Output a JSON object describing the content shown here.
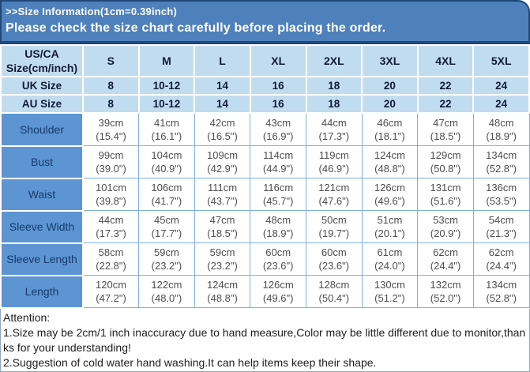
{
  "banner": {
    "line1": ">>Size Information(1cm=0.39inch)",
    "line2": "Please check the size chart carefully before placing the order."
  },
  "table": {
    "header": {
      "label_line1": "US/CA",
      "label_line2": "Size(cm/inch)",
      "sizes": [
        "S",
        "M",
        "L",
        "XL",
        "2XL",
        "3XL",
        "4XL",
        "5XL"
      ]
    },
    "uk": {
      "label": "UK Size",
      "values": [
        "8",
        "10-12",
        "14",
        "16",
        "18",
        "20",
        "22",
        "24"
      ]
    },
    "au": {
      "label": "AU Size",
      "values": [
        "8",
        "10-12",
        "14",
        "16",
        "18",
        "20",
        "22",
        "24"
      ]
    },
    "rows": [
      {
        "label": "Shoulder",
        "cm": [
          "39cm",
          "41cm",
          "42cm",
          "43cm",
          "44cm",
          "46cm",
          "47cm",
          "48cm"
        ],
        "inch": [
          "(15.4\")",
          "(16.1\")",
          "(16.5\")",
          "(16.9\")",
          "(17.3\")",
          "(18.1\")",
          "(18.5\")",
          "(18.9\")"
        ]
      },
      {
        "label": "Bust",
        "cm": [
          "99cm",
          "104cm",
          "109cm",
          "114cm",
          "119cm",
          "124cm",
          "129cm",
          "134cm"
        ],
        "inch": [
          "(39.0\")",
          "(40.9\")",
          "(42.9\")",
          "(44.9\")",
          "(46.9\")",
          "(48.8\")",
          "(50.8\")",
          "(52.8\")"
        ]
      },
      {
        "label": "Waist",
        "cm": [
          "101cm",
          "106cm",
          "111cm",
          "116cm",
          "121cm",
          "126cm",
          "131cm",
          "136cm"
        ],
        "inch": [
          "(39.8\")",
          "(41.7\")",
          "(43.7\")",
          "(45.7\")",
          "(47.6\")",
          "(49.6\")",
          "(51.6\")",
          "(53.5\")"
        ]
      },
      {
        "label": "Sleeve Width",
        "cm": [
          "44cm",
          "45cm",
          "47cm",
          "48cm",
          "50cm",
          "51cm",
          "53cm",
          "54cm"
        ],
        "inch": [
          "(17.3\")",
          "(17.7\")",
          "(18.5\")",
          "(18.9\")",
          "(19.7\")",
          "(20.1\")",
          "(20.9\")",
          "(21.3\")"
        ]
      },
      {
        "label": "Sleeve Length",
        "cm": [
          "58cm",
          "59cm",
          "59cm",
          "60cm",
          "60cm",
          "61cm",
          "62cm",
          "62cm"
        ],
        "inch": [
          "(22.8\")",
          "(23.2\")",
          "(23.2\")",
          "(23.6\")",
          "(23.6\")",
          "(24.0\")",
          "(24.4\")",
          "(24.4\")"
        ]
      },
      {
        "label": "Length",
        "cm": [
          "120cm",
          "122cm",
          "124cm",
          "126cm",
          "128cm",
          "130cm",
          "132cm",
          "134cm"
        ],
        "inch": [
          "(47.2\")",
          "(48.0\")",
          "(48.8\")",
          "(49.6\")",
          "(50.4\")",
          "(51.2\")",
          "(52.0\")",
          "(52.8\")"
        ]
      }
    ]
  },
  "attention": {
    "title": "Attention:",
    "notes": [
      "1.Size may be 2cm/1 inch inaccuracy due to hand measure,Color may be little different due to monitor,thanks for your understanding!",
      "2.Suggestion of cold water hand washing.It can help items keep their shape."
    ]
  },
  "colors": {
    "banner_blue": "#4e81bb",
    "banner_border_navy": "#1f4778",
    "header_light_blue": "#c2dcef",
    "row_label_blue": "#5d95d3",
    "cell_border_blue": "#7fb0dc",
    "header_text_navy": "#101c38",
    "data_text_gray": "#4e4e4e"
  }
}
